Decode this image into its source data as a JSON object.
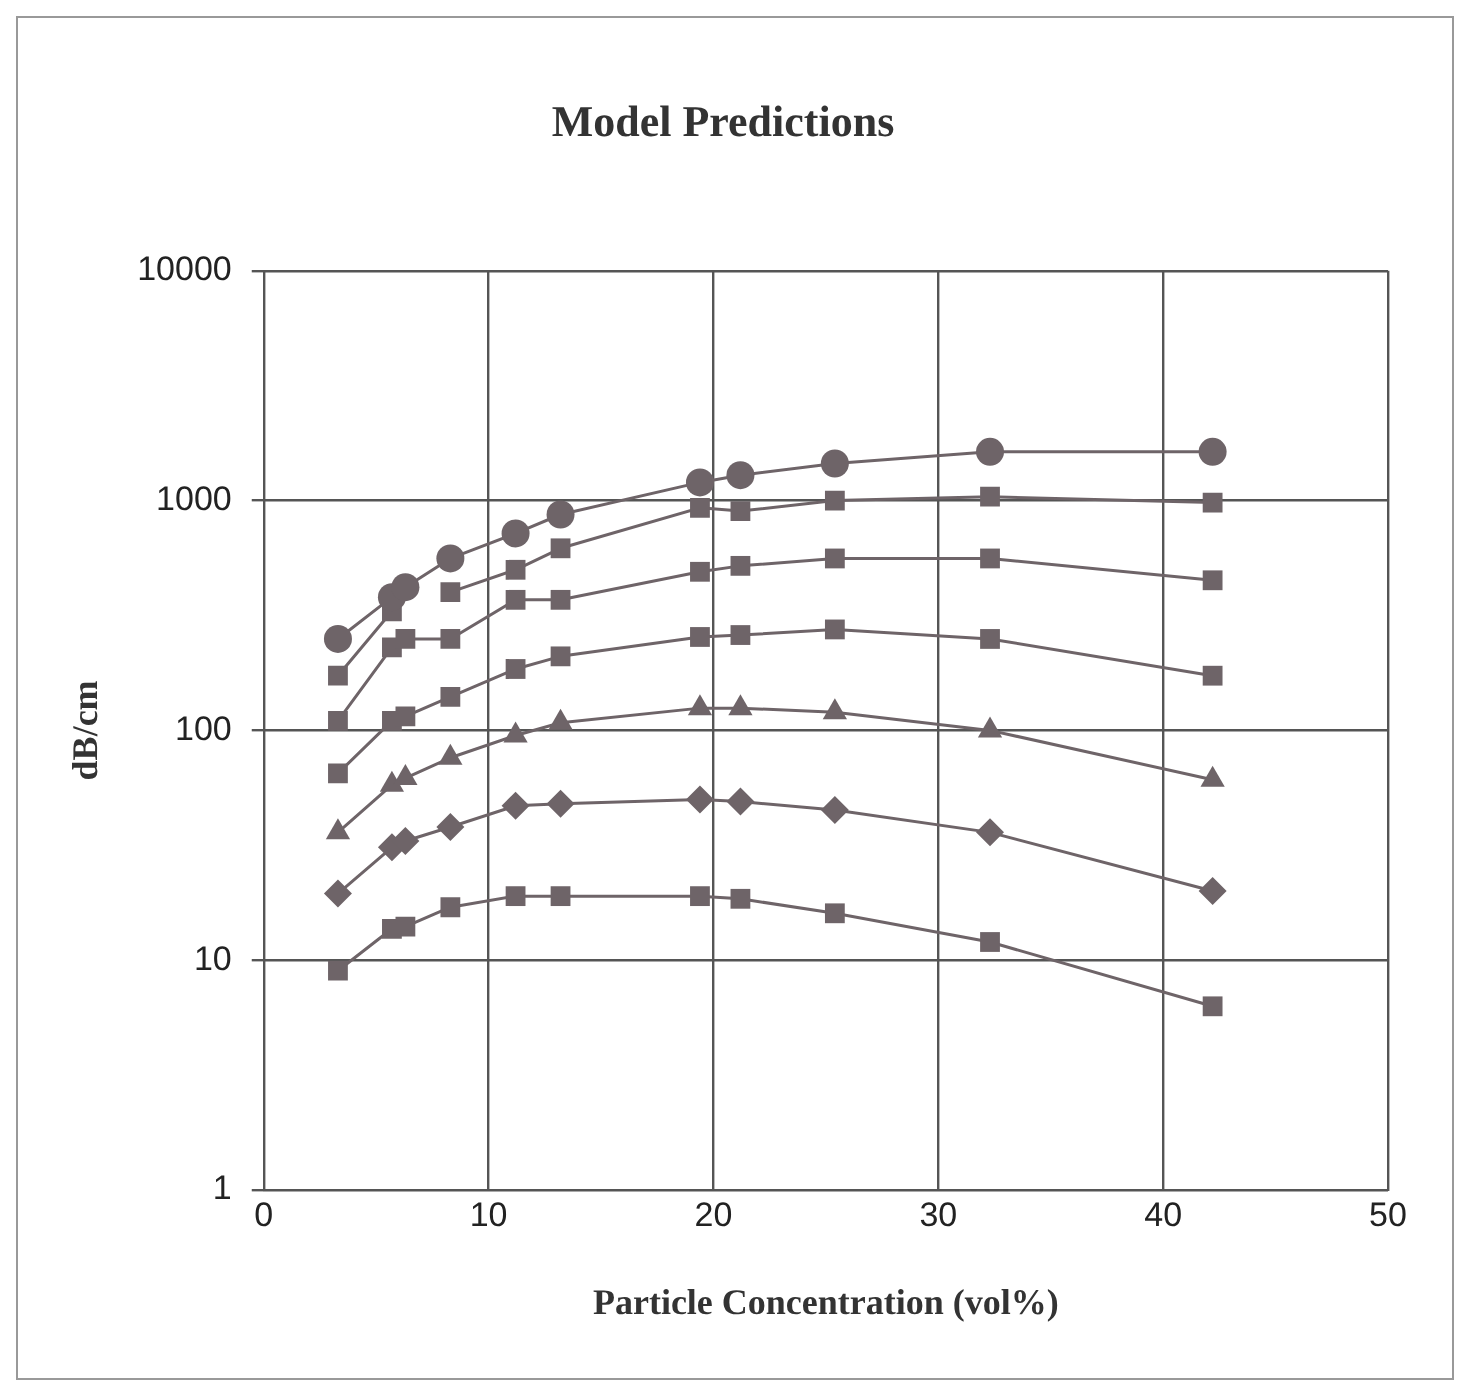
{
  "chart_data": {
    "type": "line",
    "title": "Model Predictions",
    "xlabel": "Particle Concentration (vol%)",
    "ylabel": "dB/cm",
    "x": [
      3.3,
      5.7,
      6.3,
      8.3,
      11.2,
      13.2,
      19.4,
      21.2,
      25.4,
      32.3,
      42.2
    ],
    "series": [
      {
        "color": "#6e6468",
        "marker": "circle",
        "values": [
          250,
          380,
          420,
          560,
          720,
          870,
          1200,
          1290,
          1450,
          1630,
          1630
        ]
      },
      {
        "color": "#6e6468",
        "marker": "square",
        "values": [
          173,
          330,
          null,
          400,
          500,
          620,
          930,
          900,
          1000,
          1040,
          980
        ]
      },
      {
        "color": "#6e6468",
        "marker": "square",
        "values": [
          110,
          230,
          250,
          250,
          370,
          370,
          490,
          520,
          560,
          560,
          450
        ]
      },
      {
        "color": "#6e6468",
        "marker": "square",
        "values": [
          65,
          110,
          115,
          140,
          185,
          210,
          255,
          260,
          275,
          250,
          173
        ]
      },
      {
        "color": "#6e6468",
        "marker": "triangle",
        "values": [
          36,
          58,
          62,
          76,
          95,
          108,
          125,
          125,
          120,
          100,
          61
        ]
      },
      {
        "color": "#6e6468",
        "marker": "diamond",
        "values": [
          19.5,
          31,
          33,
          38,
          47,
          48,
          50,
          49,
          45,
          36,
          20
        ]
      },
      {
        "color": "#6e6468",
        "marker": "square",
        "values": [
          9,
          13.7,
          14,
          17,
          19,
          19,
          19,
          18.5,
          16,
          12,
          6.3
        ]
      }
    ],
    "log": "y",
    "xlim": [
      0,
      50
    ],
    "xticks": [
      0,
      10,
      20,
      30,
      40,
      50
    ],
    "ylim": [
      1,
      10000
    ],
    "yticks": [
      1,
      10,
      100,
      1000,
      10000
    ],
    "grid": true,
    "legend": false
  }
}
